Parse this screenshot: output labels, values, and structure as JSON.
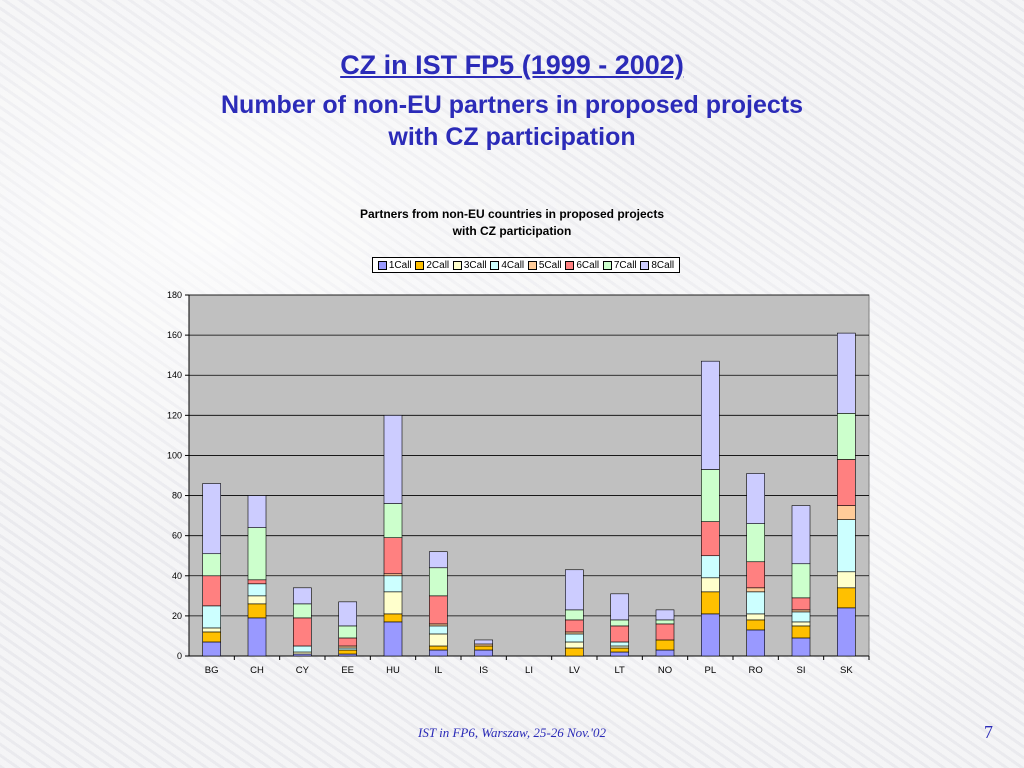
{
  "slide": {
    "title": "CZ in IST FP5 (1999 - 2002)",
    "subtitle_line1": "Number of non-EU partners in proposed projects",
    "subtitle_line2": "with CZ participation",
    "footer": "IST in FP6, Warszaw, 25-26 Nov.'02",
    "page_number": "7"
  },
  "chart_data": {
    "type": "bar",
    "stacked": true,
    "title_line1": "Partners from non-EU countries in proposed projects",
    "title_line2": "with CZ participation",
    "xlabel": "",
    "ylabel": "",
    "ylim": [
      0,
      180
    ],
    "y_ticks": [
      0,
      20,
      40,
      60,
      80,
      100,
      120,
      140,
      160,
      180
    ],
    "grid": true,
    "legend_position": "top",
    "categories": [
      "BG",
      "CH",
      "CY",
      "EE",
      "HU",
      "IL",
      "IS",
      "LI",
      "LV",
      "LT",
      "NO",
      "PL",
      "RO",
      "SI",
      "SK"
    ],
    "series": [
      {
        "name": "1Call",
        "color": "#9999ff",
        "values": [
          7,
          19,
          1,
          1,
          17,
          3,
          3,
          0,
          0,
          2,
          3,
          21,
          13,
          9,
          24
        ]
      },
      {
        "name": "2Call",
        "color": "#ffc000",
        "values": [
          5,
          7,
          0,
          2,
          4,
          2,
          2,
          0,
          4,
          2,
          5,
          11,
          5,
          6,
          10
        ]
      },
      {
        "name": "3Call",
        "color": "#ffffcc",
        "values": [
          2,
          4,
          1,
          0,
          11,
          6,
          0,
          0,
          3,
          1,
          0,
          7,
          3,
          2,
          8
        ]
      },
      {
        "name": "4Call",
        "color": "#ccffff",
        "values": [
          11,
          6,
          3,
          1,
          8,
          4,
          0,
          0,
          4,
          2,
          0,
          11,
          11,
          5,
          26
        ]
      },
      {
        "name": "5Call",
        "color": "#ffcc99",
        "values": [
          0,
          0,
          0,
          1,
          1,
          1,
          1,
          0,
          1,
          0,
          0,
          0,
          2,
          1,
          7
        ]
      },
      {
        "name": "6Call",
        "color": "#ff8080",
        "values": [
          15,
          2,
          14,
          4,
          18,
          14,
          0,
          0,
          6,
          8,
          8,
          17,
          13,
          6,
          23
        ]
      },
      {
        "name": "7Call",
        "color": "#ccffcc",
        "values": [
          11,
          26,
          7,
          6,
          17,
          14,
          0,
          0,
          5,
          3,
          2,
          26,
          19,
          17,
          23
        ]
      },
      {
        "name": "8Call",
        "color": "#ccccff",
        "values": [
          35,
          16,
          8,
          12,
          44,
          8,
          2,
          0,
          20,
          13,
          5,
          54,
          25,
          29,
          40
        ]
      }
    ]
  }
}
